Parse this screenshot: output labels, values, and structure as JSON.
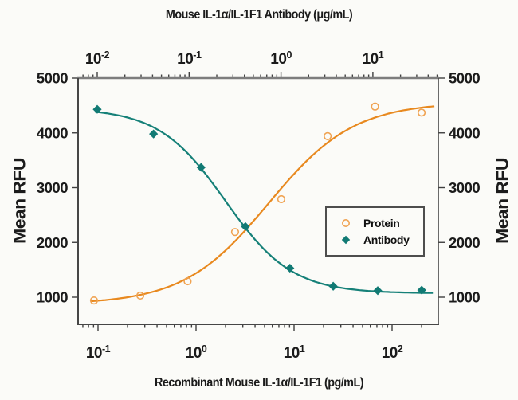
{
  "page": {
    "background": "#FBFBF8"
  },
  "titles": {
    "top_axis": "Mouse IL-1α/IL-1F1 Antibody (μg/mL)",
    "bottom_axis": "Recombinant Mouse IL-1α/IL-1F1 (pg/mL)",
    "left_axis": "Mean RFU",
    "right_axis": "Mean RFU"
  },
  "legend": {
    "position": "lower right",
    "items": [
      {
        "label": "Protein",
        "marker": "open-circle",
        "color": "#F0A352"
      },
      {
        "label": "Antibody",
        "marker": "filled-diamond",
        "color": "#117A74"
      }
    ]
  },
  "colors": {
    "spine": "#464646",
    "top_spine": "#7d7d7d",
    "tick": "#3f3f3f",
    "tick_label": "#1a1a1a",
    "protein_line": "#E8891F",
    "protein_marker": "#F0A352",
    "antibody_line": "#158078",
    "antibody_marker": "#117A74"
  },
  "chart_data": {
    "type": "scatter",
    "subtype": "dose-response curves (4-parameter logistic fits), dual log x-axes",
    "title": "Mouse IL-1α/IL-1F1 Antibody (μg/mL)",
    "xlabel_top": "Mouse IL-1α/IL-1F1 Antibody (μg/mL)",
    "xlabel_bottom": "Recombinant Mouse IL-1α/IL-1F1 (pg/mL)",
    "ylabel": "Mean RFU",
    "grid": false,
    "axes": {
      "bottom": {
        "scale": "log",
        "unit": "pg/mL",
        "range": [
          0.063,
          295
        ],
        "major_ticks": [
          0.1,
          1,
          10,
          100
        ]
      },
      "top": {
        "scale": "log",
        "unit": "µg/mL",
        "range": [
          0.0062,
          52
        ],
        "major_ticks": [
          0.01,
          0.1,
          1,
          10
        ]
      },
      "y": {
        "scale": "linear",
        "range": [
          505,
          5000
        ],
        "major_ticks": [
          1000,
          2000,
          3000,
          4000,
          5000
        ]
      }
    },
    "series": [
      {
        "name": "Protein",
        "x_axis": "bottom",
        "marker": "open-circle",
        "x": [
          0.091,
          0.27,
          0.82,
          2.5,
          7.4,
          22,
          67,
          200
        ],
        "y": [
          940,
          1030,
          1290,
          2190,
          2790,
          3940,
          4480,
          4370
        ],
        "fit_4pl": {
          "a": 870,
          "d": 4560,
          "c": 5.5,
          "b": 1.0
        },
        "fit_x_range": [
          0.085,
          270
        ]
      },
      {
        "name": "Antibody",
        "x_axis": "top",
        "marker": "filled-diamond",
        "x": [
          0.01,
          0.041,
          0.135,
          0.41,
          1.25,
          3.7,
          11.3,
          34
        ],
        "y": [
          4430,
          3980,
          3370,
          2290,
          1530,
          1200,
          1120,
          1130
        ],
        "fit_4pl": {
          "a": 4450,
          "d": 1070,
          "c": 0.248,
          "b": 1.2
        },
        "fit_x_range": [
          0.0095,
          45
        ]
      }
    ]
  }
}
